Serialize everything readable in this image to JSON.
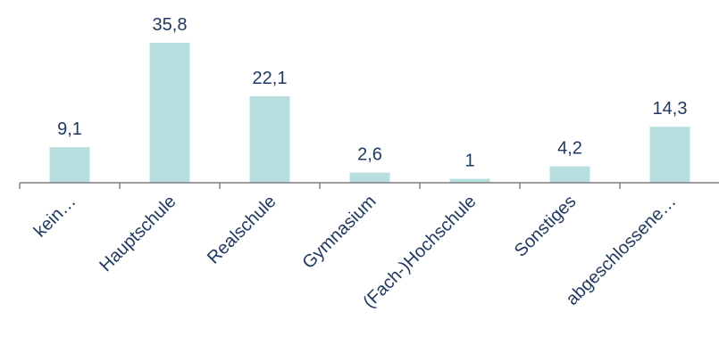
{
  "chart_data": {
    "type": "bar",
    "categories": [
      "kein…",
      "Hauptschule",
      "Realschule",
      "Gymnasium",
      "(Fach-)Hochschule",
      "Sonstiges",
      "abgeschlossene…"
    ],
    "values": [
      9.1,
      35.8,
      22.1,
      2.6,
      1,
      4.2,
      14.3
    ],
    "value_labels": [
      "9,1",
      "35,8",
      "22,1",
      "2,6",
      "1",
      "4,2",
      "14,3"
    ],
    "title": "",
    "xlabel": "",
    "ylabel": "",
    "ylim": [
      0,
      36
    ],
    "grid": false,
    "legend": "none",
    "colors": {
      "bar": "#b7dfe0",
      "text": "#1f3864",
      "axis": "#7f7f7f"
    }
  }
}
